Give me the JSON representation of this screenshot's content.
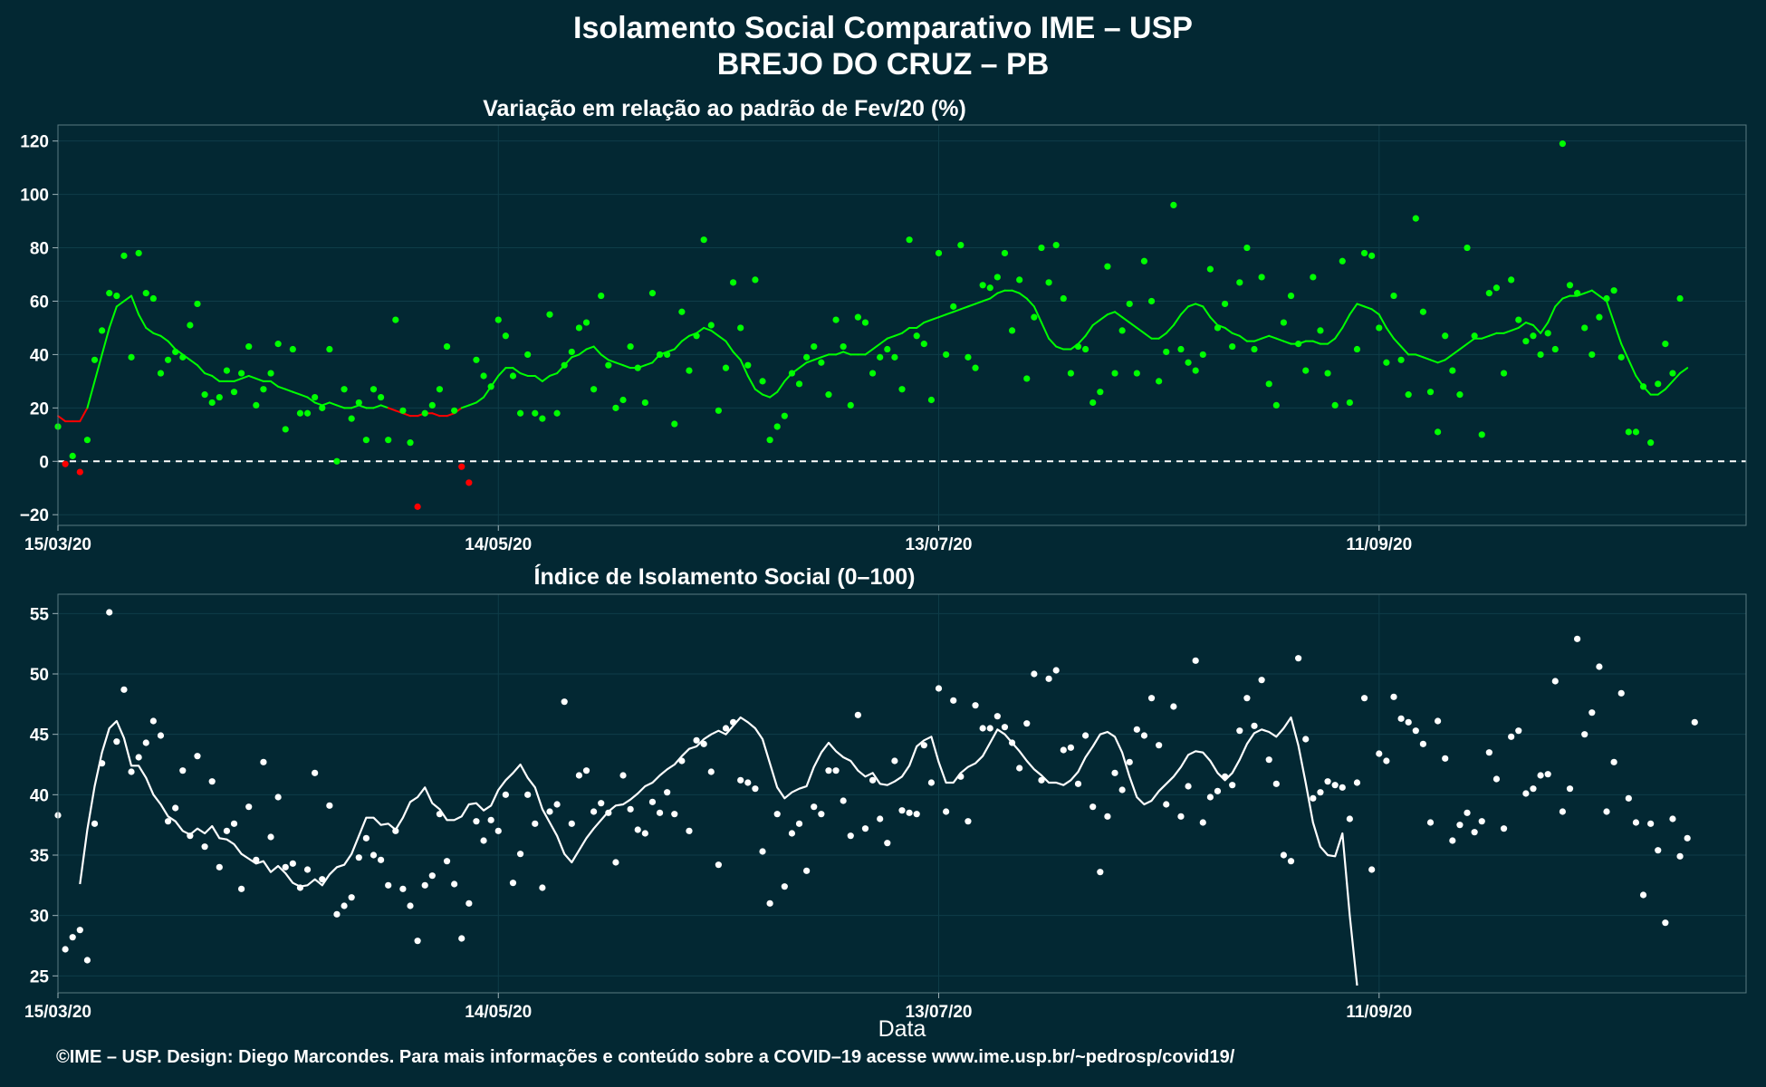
{
  "title": "Isolamento Social Comparativo IME – USP",
  "subtitle": "BREJO DO CRUZ – PB",
  "footer": "©IME – USP. Design: Diego Marcondes. Para mais informações e conteúdo sobre a COVID–19 acesse www.ime.usp.br/~pedrosp/covid19/",
  "colors": {
    "background": "#032833",
    "grid": "#0f3d49",
    "positive": "#00ff00",
    "negative": "#ff0000",
    "index": "#ffffff"
  },
  "chart_data": [
    {
      "type": "scatter",
      "title": "Variação em relação ao padrão de Fev/20 (%)",
      "xlabel": "",
      "ylabel": "",
      "x_start": "2020-03-15",
      "x_end": "2020-10-31",
      "x_ticks": [
        "15/03/20",
        "14/05/20",
        "13/07/20",
        "11/09/20"
      ],
      "x_tick_dates": [
        "2020-03-15",
        "2020-05-14",
        "2020-07-13",
        "2020-09-11"
      ],
      "y_ticks": [
        -20,
        0,
        20,
        40,
        60,
        80,
        100,
        120
      ],
      "ylim": [
        -24,
        126
      ],
      "reference_line": 0,
      "grid": true,
      "series": [
        {
          "values": [
            13,
            -1,
            2,
            -4,
            8,
            38,
            49,
            63,
            62,
            77,
            39,
            78,
            63,
            61,
            33,
            38,
            41,
            39,
            51,
            59,
            25,
            22,
            24,
            34,
            26,
            33,
            43,
            21,
            27,
            33,
            44,
            12,
            42,
            18,
            18,
            24,
            20,
            42,
            0,
            27,
            16,
            22,
            8,
            27,
            24,
            8,
            53,
            19,
            7,
            -17,
            18,
            21,
            27,
            43,
            19,
            -2,
            -8,
            38,
            32,
            28,
            53,
            47,
            32,
            18,
            40,
            18,
            16,
            55,
            18,
            36,
            41,
            50,
            52,
            27,
            62,
            36,
            20,
            23,
            43,
            35,
            22,
            63,
            40,
            40,
            14,
            56,
            34,
            47,
            83,
            51,
            19,
            35,
            67,
            50,
            36,
            68,
            30,
            8,
            13,
            17,
            33,
            29,
            39,
            43,
            37,
            25,
            53,
            43,
            21,
            54,
            52,
            33,
            39,
            42,
            39,
            27,
            83,
            47,
            44,
            23,
            78,
            40,
            58,
            81,
            39,
            35,
            66,
            65,
            69,
            78,
            49,
            68,
            31,
            54,
            80,
            67,
            81,
            61,
            33,
            43,
            42,
            22,
            26,
            73,
            33,
            49,
            59,
            33,
            75,
            60,
            30,
            41,
            96,
            42,
            37,
            34,
            40,
            72,
            50,
            59,
            43,
            67,
            80,
            42,
            69,
            29,
            21,
            52,
            62,
            44,
            34,
            69,
            49,
            33,
            21,
            75,
            22,
            42,
            78,
            77,
            50,
            37,
            62,
            38,
            25,
            91,
            56,
            26,
            11,
            47,
            34,
            25,
            80,
            47,
            10,
            63,
            65,
            33,
            68,
            53,
            45,
            47,
            40,
            48,
            42,
            119,
            66,
            63,
            50,
            40,
            54,
            61,
            64,
            39,
            11,
            11,
            28,
            7,
            29,
            44,
            33,
            61
          ]
        },
        {
          "name": "rolling",
          "values": [
            17,
            15,
            15,
            15,
            20,
            30,
            40,
            50,
            58,
            60,
            62,
            55,
            50,
            48,
            47,
            45,
            42,
            40,
            38,
            36,
            33,
            32,
            30,
            30,
            30,
            31,
            32,
            31,
            30,
            30,
            28,
            27,
            26,
            25,
            24,
            22,
            21,
            22,
            21,
            20,
            20,
            21,
            20,
            20,
            21,
            20,
            19,
            18,
            17,
            17,
            18,
            18,
            17,
            17,
            18,
            20,
            21,
            22,
            24,
            28,
            32,
            35,
            35,
            33,
            32,
            32,
            30,
            32,
            33,
            36,
            39,
            40,
            42,
            43,
            40,
            38,
            37,
            36,
            35,
            35,
            36,
            37,
            40,
            41,
            42,
            45,
            47,
            48,
            50,
            49,
            47,
            45,
            41,
            38,
            32,
            27,
            25,
            24,
            26,
            30,
            33,
            35,
            37,
            38,
            39,
            40,
            40,
            41,
            40,
            40,
            40,
            42,
            44,
            46,
            47,
            48,
            50,
            50,
            52,
            53,
            54,
            55,
            56,
            57,
            58,
            59,
            60,
            61,
            63,
            64,
            64,
            63,
            61,
            58,
            52,
            46,
            43,
            42,
            42,
            44,
            47,
            51,
            53,
            55,
            56,
            54,
            52,
            50,
            48,
            46,
            46,
            48,
            51,
            55,
            58,
            59,
            58,
            54,
            51,
            50,
            48,
            47,
            45,
            45,
            46,
            47,
            46,
            45,
            44,
            44,
            45,
            45,
            44,
            44,
            46,
            50,
            55,
            59,
            58,
            57,
            55,
            50,
            46,
            43,
            40,
            40,
            39,
            38,
            37,
            38,
            40,
            42,
            44,
            46,
            46,
            47,
            48,
            48,
            49,
            50,
            52,
            51,
            48,
            52,
            58,
            61,
            62,
            62,
            63,
            64,
            62,
            60,
            52,
            44,
            38,
            32,
            28,
            25,
            25,
            27,
            30,
            33,
            35
          ]
        }
      ]
    },
    {
      "type": "scatter",
      "title": "Índice de Isolamento Social (0–100)",
      "xlabel": "Data",
      "ylabel": "",
      "x_start": "2020-03-15",
      "x_end": "2020-10-31",
      "x_ticks": [
        "15/03/20",
        "14/05/20",
        "13/07/20",
        "11/09/20"
      ],
      "x_tick_dates": [
        "2020-03-15",
        "2020-05-14",
        "2020-07-13",
        "2020-09-11"
      ],
      "y_ticks": [
        25,
        30,
        35,
        40,
        45,
        50,
        55
      ],
      "ylim": [
        23.6,
        56.6
      ],
      "grid": true,
      "series": [
        {
          "values": [
            38.3,
            27.2,
            28.2,
            28.8,
            26.3,
            37.6,
            42.6,
            55.1,
            44.4,
            48.7,
            41.9,
            43.1,
            44.3,
            46.1,
            44.9,
            37.8,
            38.9,
            42.0,
            36.6,
            43.2,
            35.7,
            41.1,
            34.0,
            37.0,
            37.6,
            32.2,
            39.0,
            34.6,
            42.7,
            36.5,
            39.8,
            34.0,
            34.3,
            32.3,
            33.8,
            41.8,
            33.0,
            39.1,
            30.1,
            30.8,
            31.5,
            34.8,
            36.4,
            35.0,
            34.6,
            32.5,
            37.0,
            32.2,
            30.8,
            27.9,
            32.5,
            33.3,
            38.4,
            34.5,
            32.6,
            28.1,
            31.0,
            37.8,
            36.2,
            37.9,
            37.0,
            40.0,
            32.7,
            35.1,
            40.0,
            37.6,
            32.3,
            38.6,
            39.2,
            47.7,
            37.6,
            41.6,
            42.0,
            38.6,
            39.3,
            38.5,
            34.4,
            41.6,
            38.8,
            37.1,
            36.8,
            39.4,
            38.5,
            40.2,
            38.4,
            42.8,
            37.0,
            44.5,
            44.2,
            41.9,
            34.2,
            45.5,
            46.0,
            41.2,
            41.0,
            40.5,
            35.3,
            31.0,
            38.4,
            32.4,
            36.8,
            37.6,
            33.7,
            39.0,
            38.4,
            42.0,
            42.0,
            39.5,
            36.6,
            46.6,
            37.2,
            41.2,
            38.0,
            36.0,
            42.8,
            38.7,
            38.5,
            38.4,
            44.1,
            41.0,
            48.8,
            38.6,
            47.8,
            41.5,
            37.8,
            47.4,
            45.5,
            45.5,
            46.5,
            45.6,
            44.3,
            42.2,
            45.9,
            50.0,
            41.2,
            49.6,
            50.3,
            43.7,
            43.9,
            40.9,
            44.9,
            39.0,
            33.6,
            38.2,
            41.8,
            40.4,
            42.7,
            45.4,
            44.9,
            48.0,
            44.1,
            39.2,
            47.3,
            38.2,
            40.7,
            51.1,
            37.7,
            39.8,
            40.3,
            41.5,
            40.8,
            45.3,
            48.0,
            45.7,
            49.5,
            42.9,
            40.9,
            35.0,
            34.5,
            51.3,
            44.6,
            39.7,
            40.2,
            41.1,
            40.8,
            40.6,
            38.0,
            41.0,
            48.0,
            33.8,
            43.4,
            42.8,
            48.1,
            46.3,
            46.0,
            45.3,
            44.2,
            37.7,
            46.1,
            43.0,
            36.2,
            37.5,
            38.5,
            36.9,
            37.8,
            43.5,
            41.3,
            37.2,
            44.8,
            45.3,
            40.1,
            40.5,
            41.6,
            41.7,
            49.4,
            38.6,
            40.5,
            52.9,
            45.0,
            46.8,
            50.6,
            38.6,
            42.7,
            48.4,
            39.7,
            37.7,
            31.7,
            37.6,
            35.4,
            29.4,
            38.0,
            34.9,
            36.4,
            46.0
          ]
        },
        {
          "name": "rolling",
          "values": [
            null,
            null,
            null,
            32.6,
            37.1,
            40.7,
            43.5,
            45.5,
            46.1,
            44.7,
            42.4,
            42.4,
            41.4,
            40.0,
            39.2,
            38.2,
            37.8,
            37.0,
            36.7,
            37.2,
            36.8,
            37.4,
            36.4,
            36.3,
            35.9,
            35.1,
            34.7,
            34.3,
            34.5,
            33.6,
            34.1,
            33.5,
            32.7,
            32.4,
            32.5,
            33.0,
            32.5,
            33.4,
            34.0,
            34.2,
            35.1,
            36.6,
            38.1,
            38.1,
            37.5,
            37.6,
            37.1,
            38.1,
            39.4,
            39.8,
            40.6,
            39.3,
            38.8,
            37.9,
            37.9,
            38.2,
            39.2,
            39.3,
            38.7,
            39.1,
            40.4,
            41.2,
            41.8,
            42.5,
            41.4,
            40.6,
            38.8,
            37.7,
            36.6,
            35.1,
            34.4,
            35.4,
            36.4,
            37.2,
            37.9,
            38.6,
            39.1,
            39.2,
            39.6,
            40.1,
            40.7,
            41.0,
            41.6,
            42.1,
            42.5,
            43.2,
            43.8,
            44.0,
            44.6,
            45.0,
            45.3,
            45.0,
            45.7,
            46.4,
            46.0,
            45.5,
            44.6,
            42.6,
            40.6,
            39.7,
            40.2,
            40.5,
            40.7,
            42.3,
            43.5,
            44.3,
            43.6,
            43.1,
            42.8,
            42.0,
            41.5,
            41.8,
            40.9,
            40.8,
            41.1,
            41.5,
            42.4,
            44.0,
            44.5,
            44.8,
            42.7,
            41.0,
            41.0,
            41.8,
            42.3,
            42.6,
            43.2,
            44.3,
            45.4,
            45.0,
            44.3,
            43.6,
            42.8,
            42.1,
            41.6,
            41.0,
            41.0,
            40.8,
            41.2,
            41.9,
            43.1,
            44.0,
            45.0,
            45.2,
            44.8,
            43.5,
            41.5,
            39.8,
            39.2,
            39.5,
            40.3,
            40.9,
            41.5,
            42.3,
            43.3,
            43.6,
            43.5,
            42.8,
            41.8,
            41.2,
            41.8,
            42.9,
            44.2,
            45.1,
            45.4,
            45.2,
            44.8,
            45.5,
            46.4,
            44.1,
            41.0,
            37.7,
            35.7,
            35.0,
            34.9,
            36.8,
            30.0,
            24.2
          ]
        }
      ]
    }
  ]
}
